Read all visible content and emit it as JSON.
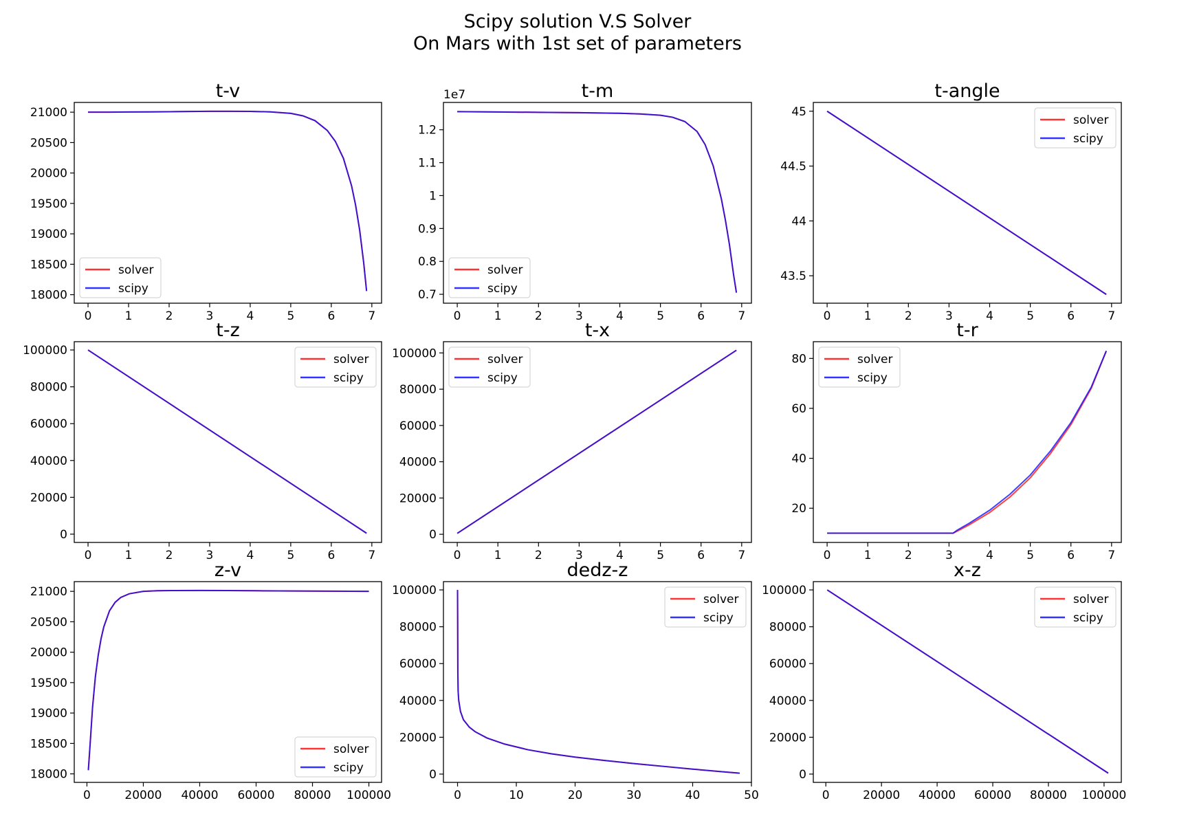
{
  "figure": {
    "title_line1": "Scipy solution V.S Solver",
    "title_line2": "On Mars with 1st set of parameters"
  },
  "colors": {
    "solver": "#ff0000",
    "scipy": "#0000ff"
  },
  "chart_data": [
    {
      "type": "line",
      "title": "t-v",
      "xlabel": "",
      "ylabel": "",
      "xlim": [
        -0.34,
        7.24
      ],
      "ylim": [
        17860,
        21160
      ],
      "xticks": [
        0,
        1,
        2,
        3,
        4,
        5,
        6,
        7
      ],
      "yticks": [
        18000,
        18500,
        19000,
        19500,
        20000,
        20500,
        21000
      ],
      "legend": "lower left",
      "grid": false,
      "series": [
        {
          "name": "solver",
          "x": [
            0,
            0.5,
            1,
            1.5,
            2,
            2.5,
            3,
            3.5,
            4,
            4.5,
            5,
            5.3,
            5.6,
            5.9,
            6.1,
            6.3,
            6.5,
            6.6,
            6.7,
            6.8,
            6.87
          ],
          "y": [
            21000,
            21001,
            21003,
            21005,
            21008,
            21011,
            21014,
            21015,
            21013,
            21005,
            20980,
            20940,
            20860,
            20700,
            20520,
            20240,
            19790,
            19470,
            19060,
            18520,
            18060
          ]
        },
        {
          "name": "scipy",
          "x": [
            0,
            0.5,
            1,
            1.5,
            2,
            2.5,
            3,
            3.5,
            4,
            4.5,
            5,
            5.3,
            5.6,
            5.9,
            6.1,
            6.3,
            6.5,
            6.6,
            6.7,
            6.8,
            6.87
          ],
          "y": [
            21000,
            21001,
            21003,
            21005,
            21008,
            21011,
            21014,
            21015,
            21013,
            21005,
            20980,
            20940,
            20860,
            20700,
            20520,
            20240,
            19790,
            19470,
            19060,
            18520,
            18060
          ]
        }
      ]
    },
    {
      "type": "line",
      "title": "t-m",
      "xlabel": "",
      "ylabel": "",
      "offset_text": "1e7",
      "xlim": [
        -0.34,
        7.24
      ],
      "ylim": [
        0.673,
        1.283
      ],
      "xticks": [
        0,
        1,
        2,
        3,
        4,
        5,
        6,
        7
      ],
      "yticks": [
        0.7,
        0.8,
        0.9,
        1.0,
        1.1,
        1.2
      ],
      "legend": "lower left",
      "grid": false,
      "series": [
        {
          "name": "solver",
          "x": [
            0,
            1,
            2,
            3,
            4,
            4.5,
            5,
            5.3,
            5.6,
            5.9,
            6.1,
            6.3,
            6.5,
            6.6,
            6.7,
            6.8,
            6.87
          ],
          "y": [
            1.255,
            1.254,
            1.253,
            1.252,
            1.25,
            1.248,
            1.244,
            1.238,
            1.225,
            1.195,
            1.155,
            1.09,
            0.99,
            0.925,
            0.85,
            0.76,
            0.705
          ]
        },
        {
          "name": "scipy",
          "x": [
            0,
            1,
            2,
            3,
            4,
            4.5,
            5,
            5.3,
            5.6,
            5.9,
            6.1,
            6.3,
            6.5,
            6.6,
            6.7,
            6.8,
            6.87
          ],
          "y": [
            1.255,
            1.254,
            1.253,
            1.252,
            1.25,
            1.248,
            1.244,
            1.238,
            1.225,
            1.195,
            1.155,
            1.09,
            0.99,
            0.925,
            0.85,
            0.76,
            0.705
          ]
        }
      ]
    },
    {
      "type": "line",
      "title": "t-angle",
      "xlabel": "",
      "ylabel": "",
      "xlim": [
        -0.34,
        7.24
      ],
      "ylim": [
        43.25,
        45.08
      ],
      "xticks": [
        0,
        1,
        2,
        3,
        4,
        5,
        6,
        7
      ],
      "yticks": [
        43.5,
        44.0,
        44.5,
        45.0
      ],
      "legend": "upper right",
      "grid": false,
      "series": [
        {
          "name": "solver",
          "x": [
            0,
            6.87
          ],
          "y": [
            45.0,
            43.33
          ]
        },
        {
          "name": "scipy",
          "x": [
            0,
            6.87
          ],
          "y": [
            45.0,
            43.33
          ]
        }
      ]
    },
    {
      "type": "line",
      "title": "t-z",
      "xlabel": "",
      "ylabel": "",
      "xlim": [
        -0.34,
        7.24
      ],
      "ylim": [
        -4500,
        104500
      ],
      "xticks": [
        0,
        1,
        2,
        3,
        4,
        5,
        6,
        7
      ],
      "yticks": [
        0,
        20000,
        40000,
        60000,
        80000,
        100000
      ],
      "legend": "upper right",
      "grid": false,
      "series": [
        {
          "name": "solver",
          "x": [
            0,
            6.87
          ],
          "y": [
            100000,
            500
          ]
        },
        {
          "name": "scipy",
          "x": [
            0,
            6.87
          ],
          "y": [
            100000,
            500
          ]
        }
      ]
    },
    {
      "type": "line",
      "title": "t-x",
      "xlabel": "",
      "ylabel": "",
      "xlim": [
        -0.34,
        7.24
      ],
      "ylim": [
        -4500,
        106200
      ],
      "xticks": [
        0,
        1,
        2,
        3,
        4,
        5,
        6,
        7
      ],
      "yticks": [
        0,
        20000,
        40000,
        60000,
        80000,
        100000
      ],
      "legend": "upper left",
      "grid": false,
      "series": [
        {
          "name": "solver",
          "x": [
            0,
            6.87
          ],
          "y": [
            500,
            101500
          ]
        },
        {
          "name": "scipy",
          "x": [
            0,
            6.87
          ],
          "y": [
            500,
            101500
          ]
        }
      ]
    },
    {
      "type": "line",
      "title": "t-r",
      "xlabel": "",
      "ylabel": "",
      "xlim": [
        -0.34,
        7.24
      ],
      "ylim": [
        6.3,
        86.7
      ],
      "xticks": [
        0,
        1,
        2,
        3,
        4,
        5,
        6,
        7
      ],
      "yticks": [
        20,
        40,
        60,
        80
      ],
      "legend": "upper left",
      "grid": false,
      "series": [
        {
          "name": "solver",
          "x": [
            0,
            1,
            2,
            3,
            3.1,
            3.2,
            3.5,
            4,
            4.5,
            5,
            5.5,
            6,
            6.5,
            6.87
          ],
          "y": [
            10,
            10,
            10,
            10,
            10,
            10.8,
            13.4,
            18.3,
            24.5,
            32.2,
            42,
            53.5,
            68,
            83
          ]
        },
        {
          "name": "scipy",
          "x": [
            0,
            1,
            2,
            3,
            3.1,
            3.2,
            3.5,
            4,
            4.5,
            5,
            5.5,
            6,
            6.5,
            6.87
          ],
          "y": [
            10,
            10,
            10,
            10,
            10,
            11.2,
            14,
            19.2,
            25.6,
            33.3,
            43,
            54.3,
            68.5,
            83
          ]
        }
      ]
    },
    {
      "type": "line",
      "title": "z-v",
      "xlabel": "",
      "ylabel": "",
      "xlim": [
        -4500,
        104500
      ],
      "ylim": [
        17860,
        21160
      ],
      "xticks": [
        0,
        20000,
        40000,
        60000,
        80000,
        100000
      ],
      "yticks": [
        18000,
        18500,
        19000,
        19500,
        20000,
        20500,
        21000
      ],
      "legend": "lower right",
      "grid": false,
      "series": [
        {
          "name": "solver",
          "x": [
            500,
            1000,
            2000,
            3000,
            4000,
            5000,
            6000,
            8000,
            10000,
            12000,
            15000,
            20000,
            25000,
            30000,
            40000,
            50000,
            60000,
            80000,
            100000
          ],
          "y": [
            18060,
            18400,
            19100,
            19600,
            19950,
            20220,
            20420,
            20680,
            20820,
            20900,
            20960,
            21000,
            21010,
            21013,
            21015,
            21013,
            21010,
            21005,
            21000
          ]
        },
        {
          "name": "scipy",
          "x": [
            500,
            1000,
            2000,
            3000,
            4000,
            5000,
            6000,
            8000,
            10000,
            12000,
            15000,
            20000,
            25000,
            30000,
            40000,
            50000,
            60000,
            80000,
            100000
          ],
          "y": [
            18060,
            18400,
            19100,
            19600,
            19950,
            20220,
            20420,
            20680,
            20820,
            20900,
            20960,
            21000,
            21010,
            21013,
            21015,
            21013,
            21010,
            21005,
            21000
          ]
        }
      ]
    },
    {
      "type": "line",
      "title": "dedz-z",
      "xlabel": "",
      "ylabel": "",
      "xlim": [
        -2.4,
        50
      ],
      "ylim": [
        -4500,
        104500
      ],
      "xticks": [
        0,
        10,
        20,
        30,
        40,
        50
      ],
      "yticks": [
        0,
        20000,
        40000,
        60000,
        80000,
        100000
      ],
      "legend": "upper right",
      "grid": false,
      "series": [
        {
          "name": "solver",
          "x": [
            0,
            0.02,
            0.05,
            0.1,
            0.2,
            0.5,
            1,
            2,
            3,
            5,
            8,
            12,
            16,
            20,
            25,
            30,
            35,
            40,
            45,
            48
          ],
          "y": [
            100000,
            85000,
            55000,
            45000,
            40000,
            34000,
            29500,
            25500,
            23000,
            19600,
            16300,
            13200,
            11000,
            9200,
            7400,
            5700,
            4200,
            2700,
            1300,
            500
          ]
        },
        {
          "name": "scipy",
          "x": [
            0,
            0.02,
            0.05,
            0.1,
            0.2,
            0.5,
            1,
            2,
            3,
            5,
            8,
            12,
            16,
            20,
            25,
            30,
            35,
            40,
            45,
            48
          ],
          "y": [
            100000,
            85000,
            55000,
            45000,
            40000,
            34000,
            29500,
            25500,
            23000,
            19600,
            16300,
            13200,
            11000,
            9200,
            7400,
            5700,
            4200,
            2700,
            1300,
            500
          ]
        }
      ]
    },
    {
      "type": "line",
      "title": "x-z",
      "xlabel": "",
      "ylabel": "",
      "xlim": [
        -4500,
        106200
      ],
      "ylim": [
        -4500,
        104500
      ],
      "xticks": [
        0,
        20000,
        40000,
        60000,
        80000,
        100000
      ],
      "yticks": [
        0,
        20000,
        40000,
        60000,
        80000,
        100000
      ],
      "legend": "upper right",
      "grid": false,
      "series": [
        {
          "name": "solver",
          "x": [
            500,
            101500
          ],
          "y": [
            100000,
            500
          ]
        },
        {
          "name": "scipy",
          "x": [
            500,
            101500
          ],
          "y": [
            100000,
            500
          ]
        }
      ]
    }
  ]
}
